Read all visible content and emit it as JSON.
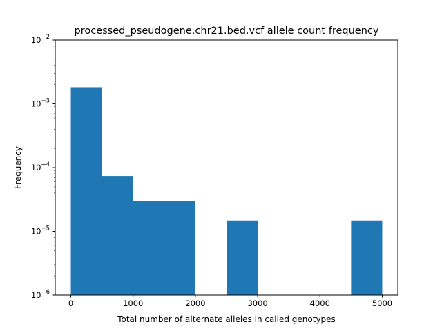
{
  "chart_data": {
    "type": "bar",
    "title": "processed_pseudogene.chr21.bed.vcf allele count frequency",
    "xlabel": "Total number of alternate alleles in called genotypes",
    "ylabel": "Frequency",
    "x_scale": "linear",
    "y_scale": "log",
    "xlim": [
      -250,
      5250
    ],
    "ylim": [
      1e-06,
      0.01
    ],
    "x_ticks": [
      {
        "value": 0,
        "label": "0"
      },
      {
        "value": 1000,
        "label": "1000"
      },
      {
        "value": 2000,
        "label": "2000"
      },
      {
        "value": 3000,
        "label": "3000"
      },
      {
        "value": 4000,
        "label": "4000"
      },
      {
        "value": 5000,
        "label": "5000"
      }
    ],
    "y_ticks": [
      {
        "value": 1e-06,
        "base": "10",
        "exp": "−6"
      },
      {
        "value": 1e-05,
        "base": "10",
        "exp": "−5"
      },
      {
        "value": 0.0001,
        "base": "10",
        "exp": "−4"
      },
      {
        "value": 0.001,
        "base": "10",
        "exp": "−3"
      },
      {
        "value": 0.01,
        "base": "10",
        "exp": "−2"
      }
    ],
    "bins": [
      {
        "x0": 0,
        "x1": 500,
        "value": 0.00182
      },
      {
        "x0": 500,
        "x1": 1000,
        "value": 7.4e-05
      },
      {
        "x0": 1000,
        "x1": 1500,
        "value": 2.96e-05
      },
      {
        "x0": 1500,
        "x1": 2000,
        "value": 2.96e-05
      },
      {
        "x0": 2000,
        "x1": 2500,
        "value": 0
      },
      {
        "x0": 2500,
        "x1": 3000,
        "value": 1.48e-05
      },
      {
        "x0": 3000,
        "x1": 3500,
        "value": 0
      },
      {
        "x0": 3500,
        "x1": 4000,
        "value": 0
      },
      {
        "x0": 4000,
        "x1": 4500,
        "value": 0
      },
      {
        "x0": 4500,
        "x1": 5000,
        "value": 1.48e-05
      }
    ],
    "bar_color": "#1f77b4",
    "grid": false,
    "legend": "none"
  }
}
